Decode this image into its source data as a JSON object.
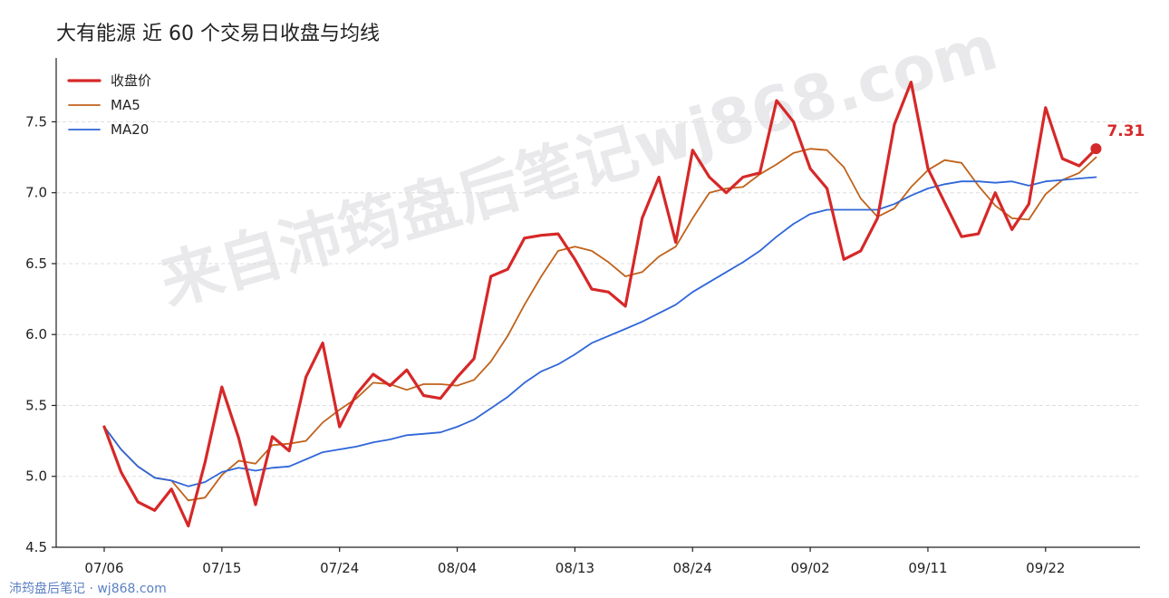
{
  "chart_data": {
    "type": "line",
    "title": "大有能源 近 60 个交易日收盘与均线",
    "xlabel": "",
    "ylabel": "",
    "ylim": [
      4.5,
      7.95
    ],
    "yticks": [
      "4.5",
      "5.0",
      "5.5",
      "6.0",
      "6.5",
      "7.0",
      "7.5"
    ],
    "xtick_labels": [
      "07/06",
      "07/15",
      "07/24",
      "08/04",
      "08/13",
      "08/24",
      "09/02",
      "09/11",
      "09/22"
    ],
    "xtick_index": [
      0,
      7,
      14,
      21,
      28,
      35,
      42,
      49,
      56
    ],
    "grid": "y-dashed",
    "legend_position": "top-left",
    "series": [
      {
        "name": "收盘价",
        "color": "#d62828",
        "width": 3.2,
        "values": [
          5.35,
          5.03,
          4.82,
          4.76,
          4.91,
          4.65,
          5.1,
          5.63,
          5.27,
          4.8,
          5.28,
          5.18,
          5.7,
          5.94,
          5.35,
          5.58,
          5.72,
          5.64,
          5.75,
          5.57,
          5.55,
          5.7,
          5.83,
          6.41,
          6.46,
          6.68,
          6.7,
          6.71,
          6.53,
          6.32,
          6.3,
          6.2,
          6.82,
          7.11,
          6.65,
          7.3,
          7.11,
          7.0,
          7.11,
          7.14,
          7.65,
          7.5,
          7.17,
          7.03,
          6.53,
          6.59,
          6.82,
          7.48,
          7.78,
          7.17,
          6.93,
          6.69,
          6.71,
          7.0,
          6.74,
          6.92,
          7.6,
          7.24,
          7.19,
          7.31
        ]
      },
      {
        "name": "MA5",
        "color": "#c0621a",
        "width": 1.8,
        "values": [
          5.35,
          5.19,
          5.07,
          4.99,
          4.97,
          4.83,
          4.85,
          5.01,
          5.11,
          5.09,
          5.22,
          5.23,
          5.25,
          5.38,
          5.47,
          5.55,
          5.66,
          5.65,
          5.61,
          5.65,
          5.65,
          5.64,
          5.68,
          5.81,
          5.99,
          6.21,
          6.41,
          6.59,
          6.62,
          6.59,
          6.51,
          6.41,
          6.44,
          6.55,
          6.62,
          6.82,
          7.0,
          7.03,
          7.04,
          7.13,
          7.2,
          7.28,
          7.31,
          7.3,
          7.18,
          6.96,
          6.83,
          6.89,
          7.04,
          7.16,
          7.23,
          7.21,
          7.05,
          6.91,
          6.82,
          6.81,
          6.99,
          7.09,
          7.14,
          7.25
        ]
      },
      {
        "name": "MA20",
        "color": "#2f66d8",
        "width": 1.8,
        "values": [
          5.35,
          5.19,
          5.07,
          4.99,
          4.97,
          4.93,
          4.96,
          5.03,
          5.06,
          5.04,
          5.06,
          5.07,
          5.12,
          5.17,
          5.19,
          5.21,
          5.24,
          5.26,
          5.29,
          5.3,
          5.31,
          5.35,
          5.4,
          5.48,
          5.56,
          5.66,
          5.74,
          5.79,
          5.86,
          5.94,
          5.99,
          6.04,
          6.09,
          6.15,
          6.21,
          6.3,
          6.37,
          6.44,
          6.51,
          6.59,
          6.69,
          6.78,
          6.85,
          6.88,
          6.88,
          6.88,
          6.88,
          6.92,
          6.98,
          7.03,
          7.06,
          7.08,
          7.08,
          7.07,
          7.08,
          7.05,
          7.08,
          7.09,
          7.1,
          7.11
        ]
      }
    ],
    "last_point_label": "7.31"
  },
  "watermark": "来自沛筠盘后笔记wj868.com",
  "footer": "沛筠盘后笔记 · wj868.com"
}
